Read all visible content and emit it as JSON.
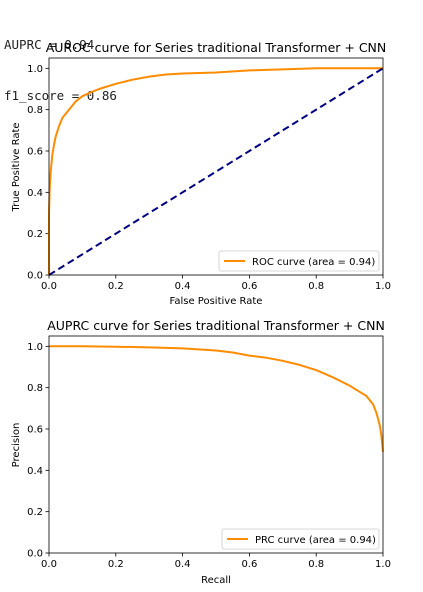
{
  "console": {
    "line1": "AUPRC = 0.94",
    "line2": "f1_score = 0.86"
  },
  "chart_data": [
    {
      "type": "line",
      "title": "AUROC curve for Series traditional Transformer + CNN",
      "xlabel": "False Positive Rate",
      "ylabel": "True Positive Rate",
      "xlim": [
        0.0,
        1.0
      ],
      "ylim": [
        0.0,
        1.05
      ],
      "xticks": [
        "0.0",
        "0.2",
        "0.4",
        "0.6",
        "0.8",
        "1.0"
      ],
      "yticks": [
        "0.0",
        "0.2",
        "0.4",
        "0.6",
        "0.8",
        "1.0"
      ],
      "grid": false,
      "legend_position": "lower-right",
      "series": [
        {
          "name": "ROC curve (area = 0.94)",
          "color": "#ff8c00",
          "style": "solid",
          "x": [
            0.0,
            0.0,
            0.002,
            0.005,
            0.01,
            0.015,
            0.02,
            0.03,
            0.04,
            0.05,
            0.06,
            0.07,
            0.08,
            0.1,
            0.12,
            0.15,
            0.2,
            0.25,
            0.3,
            0.35,
            0.4,
            0.5,
            0.6,
            0.7,
            0.8,
            0.9,
            1.0
          ],
          "y": [
            0.0,
            0.3,
            0.42,
            0.5,
            0.58,
            0.63,
            0.67,
            0.72,
            0.76,
            0.78,
            0.8,
            0.82,
            0.84,
            0.865,
            0.88,
            0.9,
            0.925,
            0.945,
            0.96,
            0.97,
            0.975,
            0.98,
            0.99,
            0.995,
            1.0,
            1.0,
            1.0
          ]
        },
        {
          "name": "",
          "color": "#000080",
          "style": "dashed",
          "x": [
            0.0,
            1.0
          ],
          "y": [
            0.0,
            1.0
          ]
        }
      ]
    },
    {
      "type": "line",
      "title": "AUPRC curve for Series traditional Transformer + CNN",
      "xlabel": "Recall",
      "ylabel": "Precision",
      "xlim": [
        0.0,
        1.0
      ],
      "ylim": [
        0.0,
        1.05
      ],
      "xticks": [
        "0.0",
        "0.2",
        "0.4",
        "0.6",
        "0.8",
        "1.0"
      ],
      "yticks": [
        "0.0",
        "0.2",
        "0.4",
        "0.6",
        "0.8",
        "1.0"
      ],
      "grid": false,
      "legend_position": "lower-right",
      "series": [
        {
          "name": "PRC curve (area = 0.94)",
          "color": "#ff8c00",
          "style": "solid",
          "x": [
            0.0,
            0.1,
            0.2,
            0.3,
            0.4,
            0.5,
            0.55,
            0.6,
            0.65,
            0.7,
            0.75,
            0.8,
            0.85,
            0.9,
            0.93,
            0.95,
            0.97,
            0.98,
            0.99,
            0.995,
            1.0
          ],
          "y": [
            1.0,
            1.0,
            0.998,
            0.995,
            0.99,
            0.98,
            0.97,
            0.955,
            0.945,
            0.93,
            0.91,
            0.885,
            0.85,
            0.81,
            0.78,
            0.76,
            0.72,
            0.68,
            0.62,
            0.57,
            0.49
          ]
        }
      ]
    }
  ]
}
